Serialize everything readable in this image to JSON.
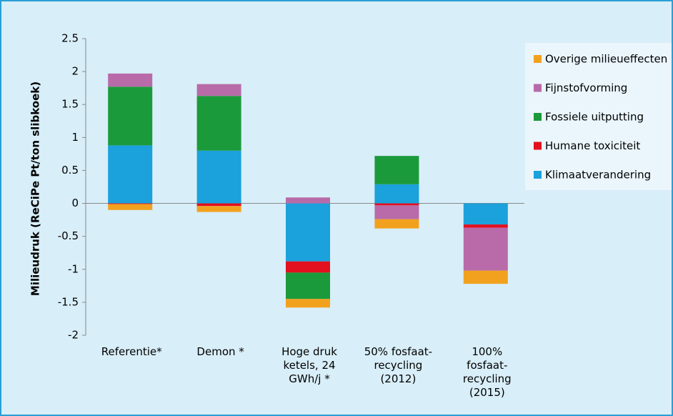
{
  "chart_data": {
    "type": "bar",
    "stacked": true,
    "y_label": "Milieudruk (ReCiPe Pt/ton slibkoek)",
    "categories": [
      "Referentie*",
      "Demon *",
      "Hoge druk ketels, 24 GWh/j *",
      "50% fosfaat-recycling (2012)",
      "100% fosfaat-recycling (2015)"
    ],
    "series": [
      {
        "name": "Klimaatverandering",
        "color": "#1ba1dc",
        "values": [
          0.88,
          0.8,
          -0.88,
          0.29,
          -0.32
        ]
      },
      {
        "name": "Humane toxiciteit",
        "color": "#e3101f",
        "values": [
          -0.01,
          -0.04,
          -0.17,
          -0.03,
          -0.05
        ]
      },
      {
        "name": "Fossiele uitputting",
        "color": "#1b9a3b",
        "values": [
          0.89,
          0.83,
          -0.4,
          0.43,
          0
        ]
      },
      {
        "name": "Fijnstofvorming",
        "color": "#b86ba8",
        "values": [
          0.2,
          0.18,
          0.09,
          -0.21,
          -0.65
        ]
      },
      {
        "name": "Overige milieueffecten",
        "color": "#f2a11f",
        "values": [
          -0.09,
          -0.09,
          -0.13,
          -0.14,
          -0.2
        ]
      }
    ],
    "ylim": [
      -2,
      2.5
    ],
    "yticks": [
      -2,
      -1.5,
      -1,
      -0.5,
      0,
      0.5,
      1,
      1.5,
      2,
      2.5
    ],
    "legend": "right"
  }
}
